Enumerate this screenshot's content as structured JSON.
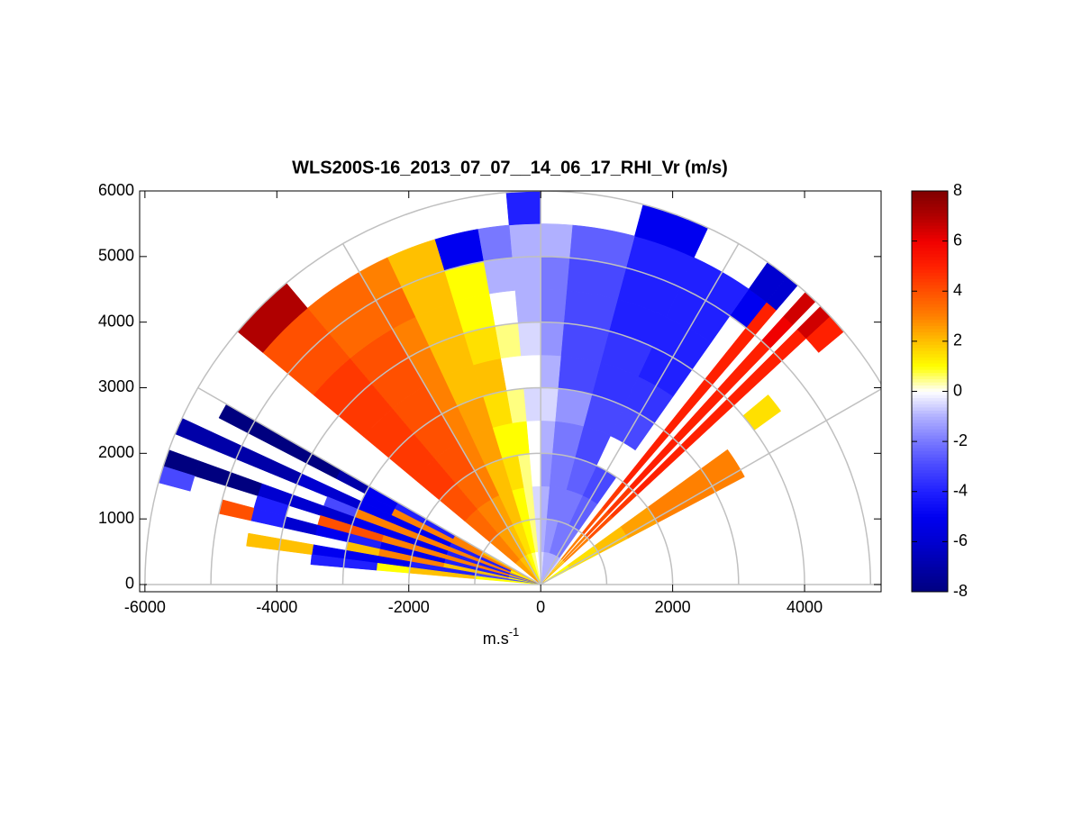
{
  "chart_data": {
    "type": "rhi",
    "title": "WLS200S-16_2013_07_07__14_06_17_RHI_Vr (m/s)",
    "xlabel": "m.s",
    "xlabel_sup": "-1",
    "xlim": [
      -6080,
      5160
    ],
    "ylim": [
      -110,
      6000
    ],
    "xticks": [
      -6000,
      -4000,
      -2000,
      0,
      2000,
      4000
    ],
    "yticks": [
      0,
      1000,
      2000,
      3000,
      4000,
      5000,
      6000
    ],
    "rgrid": [
      1000,
      2000,
      3000,
      4000,
      5000,
      6000
    ],
    "thetagrid": [
      0,
      30,
      60,
      90,
      120,
      150,
      180
    ],
    "grid_color": "#c0c0c0",
    "ranges": [
      0,
      500,
      1000,
      1500,
      2000,
      2500,
      3000,
      3500,
      4000,
      4500,
      5000,
      5500,
      6000
    ],
    "angle_edges": [
      28,
      36,
      40,
      43,
      45,
      46,
      48,
      49.5,
      51.5,
      55,
      65,
      75,
      85,
      90,
      95,
      100,
      107,
      115,
      120,
      130,
      140,
      150,
      152.5,
      155,
      157.5,
      160,
      162.5,
      165,
      167.5,
      170,
      172.5,
      175
    ],
    "values": [
      [
        1,
        1.5,
        2,
        2.5,
        3,
        3,
        3,
        null,
        null,
        null,
        null,
        null
      ],
      [
        null,
        null,
        null,
        null,
        null,
        null,
        null,
        null,
        1.5,
        null,
        null,
        null
      ],
      [
        null,
        null,
        null,
        null,
        null,
        null,
        null,
        null,
        null,
        null,
        null,
        5
      ],
      [
        2,
        3,
        4,
        4.5,
        5,
        5,
        5,
        5,
        5,
        5,
        5,
        6.5
      ],
      [
        null,
        null,
        null,
        null,
        null,
        null,
        null,
        null,
        null,
        null,
        null,
        null
      ],
      [
        2,
        3,
        4,
        4.5,
        5,
        5,
        5,
        5,
        5,
        5,
        6,
        6.5
      ],
      [
        null,
        null,
        null,
        null,
        null,
        null,
        null,
        null,
        null,
        null,
        null,
        null
      ],
      [
        2,
        3,
        4,
        4.5,
        5,
        5,
        5,
        5,
        5,
        5,
        5,
        -6
      ],
      [
        -0.5,
        null,
        null,
        null,
        null,
        null,
        null,
        null,
        null,
        null,
        -5,
        -6
      ],
      [
        -1,
        -2,
        -2.5,
        -3,
        null,
        -3,
        -3.5,
        -4,
        -4,
        -4,
        -4,
        null
      ],
      [
        -1,
        -2,
        -2,
        -2.5,
        -3,
        -3,
        -3.5,
        -3.5,
        -4,
        -4,
        -4,
        -5
      ],
      [
        -1,
        -1.5,
        -2,
        -2,
        -2,
        -1.5,
        -3,
        -3,
        -3,
        -3,
        -2.5,
        null
      ],
      [
        -0.5,
        -1,
        -1,
        -1.5,
        -1,
        -0.5,
        -1,
        -1.5,
        -2,
        -2,
        -1,
        null
      ],
      [
        -0.5,
        -0.5,
        -0.5,
        0,
        0,
        -0.5,
        0,
        -0.5,
        -1,
        -1,
        -1,
        -4
      ],
      [
        0,
        0.5,
        0.5,
        0.5,
        1,
        0.5,
        0,
        0.5,
        0,
        -1,
        -2,
        null
      ],
      [
        0.5,
        1,
        1,
        1.5,
        1,
        1.5,
        2,
        1.5,
        1,
        1,
        -5,
        null
      ],
      [
        1,
        1.5,
        2,
        2,
        2.5,
        2.5,
        2,
        2,
        2,
        2,
        2,
        null
      ],
      [
        1.5,
        2,
        2.5,
        3,
        3,
        3,
        3,
        3,
        3,
        3.5,
        3,
        null
      ],
      [
        2,
        2.5,
        3,
        3.5,
        4,
        4,
        4,
        4,
        4,
        3.5,
        3.5,
        null
      ],
      [
        2.5,
        3,
        3.5,
        4,
        4.5,
        4.5,
        4.5,
        4.5,
        4.5,
        4,
        4,
        7
      ],
      [
        null,
        null,
        null,
        null,
        null,
        null,
        null,
        null,
        null,
        null,
        null,
        null
      ],
      [
        2,
        2,
        3,
        -4,
        -4,
        -5,
        -7,
        -8,
        -8,
        -8,
        -8,
        null
      ],
      [
        2,
        3,
        3,
        3,
        3,
        -5,
        null,
        null,
        null,
        null,
        null,
        null
      ],
      [
        1,
        -4,
        -4,
        -5,
        -5,
        -5,
        -6,
        -6,
        -7,
        -7,
        -7,
        -7
      ],
      [
        2,
        3,
        3,
        3,
        3,
        3,
        -3,
        null,
        null,
        null,
        null,
        null
      ],
      [
        -3,
        -4,
        -4,
        -5,
        -5,
        -5,
        -6,
        -6,
        -6,
        -8,
        -8,
        -8
      ],
      [
        2,
        3,
        3,
        3,
        3,
        4,
        4,
        null,
        -4,
        null,
        null,
        -3
      ],
      [
        -3,
        -4,
        -4,
        -5,
        -5,
        -4,
        -5,
        -6,
        -4,
        4,
        null,
        null
      ],
      [
        1,
        2,
        2,
        3,
        3,
        2,
        null,
        null,
        null,
        null,
        null,
        null
      ],
      [
        -3,
        -3,
        -4,
        -4,
        -5,
        -5,
        -5,
        2,
        2,
        null,
        null,
        null
      ],
      [
        1,
        1,
        2,
        2,
        1,
        -4,
        -4,
        null,
        null,
        null,
        null,
        null
      ]
    ],
    "clim": [
      -8,
      8
    ],
    "cticks": [
      -8,
      -6,
      -4,
      -2,
      0,
      2,
      4,
      6,
      8
    ],
    "colormap": [
      "#00007f",
      "#0000a8",
      "#0000d0",
      "#0000f0",
      "#2020ff",
      "#4848ff",
      "#7878ff",
      "#b0b0ff",
      "#ffffff",
      "#ffff00",
      "#ffc000",
      "#ff8000",
      "#ff5000",
      "#ff2000",
      "#f00000",
      "#b00000",
      "#800000"
    ]
  }
}
